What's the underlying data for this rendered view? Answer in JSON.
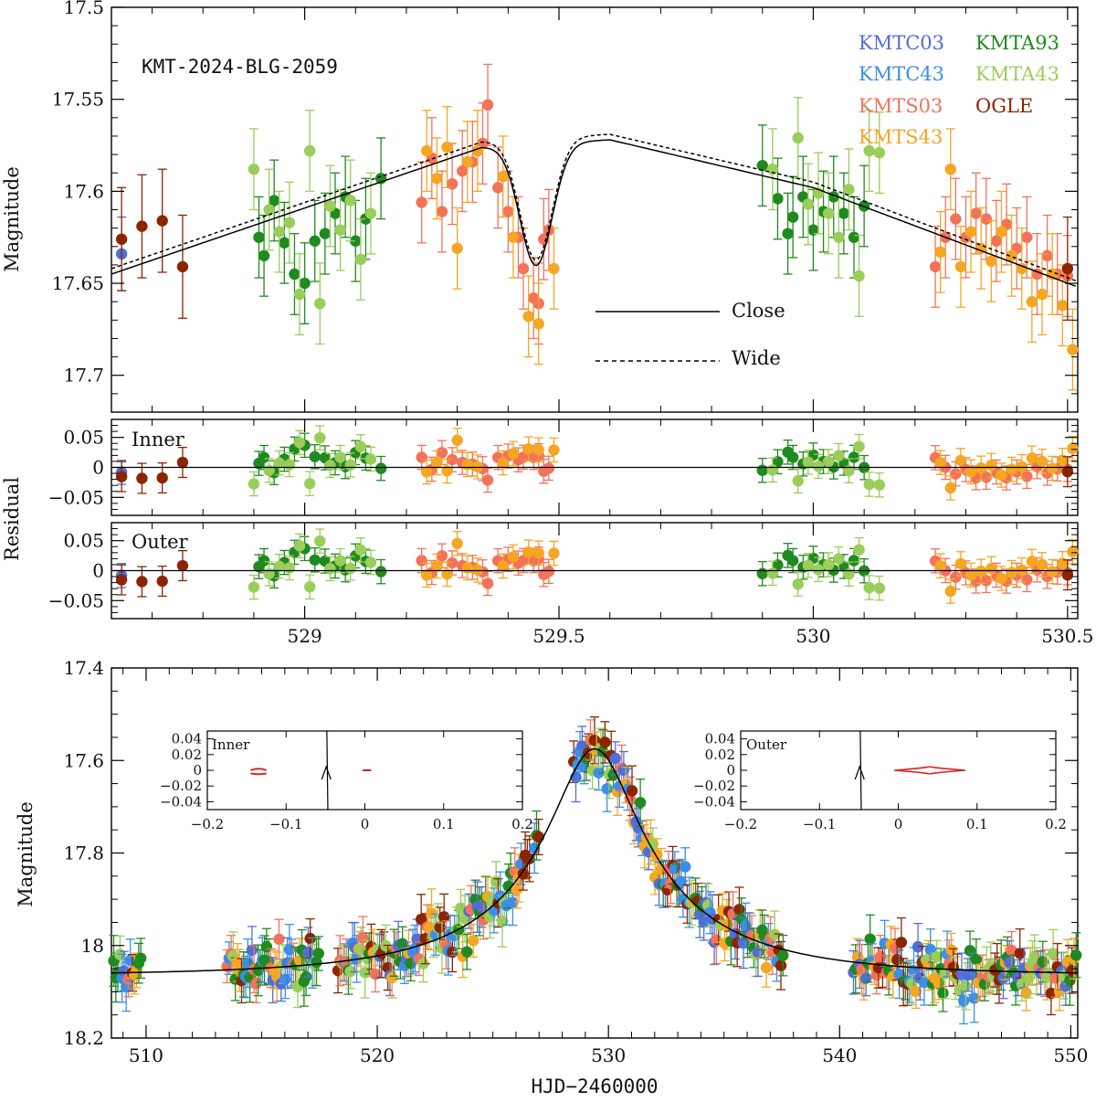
{
  "chart_data": [
    {
      "type": "scatter",
      "panel": "light-curve-zoom",
      "title": "KMT-2024-BLG-2059",
      "ylabel": "Magnitude",
      "xlim": [
        528.62,
        530.52
      ],
      "ylim": [
        17.72,
        17.5
      ],
      "yticks": [
        "17.5",
        "17.55",
        "17.6",
        "17.65",
        "17.7"
      ],
      "legend_placement": "top-right",
      "datasets": [
        {
          "name": "KMTC03",
          "color": "#4f6fd8",
          "points": [
            [
              528.64,
              17.634
            ]
          ]
        },
        {
          "name": "KMTA93",
          "color": "#1f8a1f",
          "points": [
            [
              528.91,
              17.625
            ],
            [
              528.92,
              17.635
            ],
            [
              528.94,
              17.605
            ],
            [
              528.96,
              17.628
            ],
            [
              528.98,
              17.645
            ],
            [
              529.0,
              17.65
            ],
            [
              529.02,
              17.627
            ],
            [
              529.04,
              17.623
            ],
            [
              529.06,
              17.612
            ],
            [
              529.08,
              17.603
            ],
            [
              529.1,
              17.627
            ],
            [
              529.12,
              17.615
            ],
            [
              529.15,
              17.593
            ],
            [
              529.96,
              17.614
            ],
            [
              529.98,
              17.603
            ],
            [
              530.0,
              17.621
            ],
            [
              530.02,
              17.611
            ],
            [
              530.04,
              17.603
            ],
            [
              530.06,
              17.612
            ],
            [
              530.08,
              17.625
            ],
            [
              530.1,
              17.608
            ],
            [
              529.9,
              17.586
            ],
            [
              529.93,
              17.604
            ],
            [
              529.95,
              17.623
            ]
          ]
        },
        {
          "name": "KMTA43",
          "color": "#9acd5a",
          "points": [
            [
              528.9,
              17.588
            ],
            [
              528.93,
              17.61
            ],
            [
              528.95,
              17.622
            ],
            [
              528.97,
              17.617
            ],
            [
              528.99,
              17.656
            ],
            [
              529.01,
              17.578
            ],
            [
              529.03,
              17.661
            ],
            [
              529.05,
              17.608
            ],
            [
              529.07,
              17.621
            ],
            [
              529.09,
              17.605
            ],
            [
              529.11,
              17.637
            ],
            [
              529.13,
              17.612
            ],
            [
              529.92,
              17.588
            ],
            [
              529.97,
              17.571
            ],
            [
              529.99,
              17.607
            ],
            [
              530.01,
              17.601
            ],
            [
              530.03,
              17.612
            ],
            [
              530.05,
              17.625
            ],
            [
              530.07,
              17.599
            ],
            [
              530.09,
              17.646
            ],
            [
              530.11,
              17.578
            ],
            [
              530.13,
              17.579
            ]
          ]
        },
        {
          "name": "KMTS03",
          "color": "#f2735a",
          "points": [
            [
              529.23,
              17.606
            ],
            [
              529.25,
              17.582
            ],
            [
              529.27,
              17.611
            ],
            [
              529.29,
              17.596
            ],
            [
              529.31,
              17.589
            ],
            [
              529.33,
              17.584
            ],
            [
              529.35,
              17.574
            ],
            [
              529.36,
              17.553
            ],
            [
              529.38,
              17.598
            ],
            [
              529.4,
              17.611
            ],
            [
              529.42,
              17.625
            ],
            [
              529.43,
              17.642
            ],
            [
              529.45,
              17.658
            ],
            [
              529.46,
              17.661
            ],
            [
              529.47,
              17.626
            ],
            [
              529.48,
              17.621
            ],
            [
              530.24,
              17.641
            ],
            [
              530.26,
              17.625
            ],
            [
              530.28,
              17.615
            ],
            [
              530.3,
              17.625
            ],
            [
              530.32,
              17.612
            ],
            [
              530.34,
              17.615
            ],
            [
              530.36,
              17.627
            ],
            [
              530.38,
              17.618
            ],
            [
              530.4,
              17.631
            ],
            [
              530.42,
              17.625
            ],
            [
              530.44,
              17.645
            ],
            [
              530.46,
              17.635
            ],
            [
              530.48,
              17.645
            ],
            [
              530.5,
              17.646
            ]
          ]
        },
        {
          "name": "KMTS43",
          "color": "#f5a623",
          "points": [
            [
              529.24,
              17.578
            ],
            [
              529.26,
              17.593
            ],
            [
              529.28,
              17.576
            ],
            [
              529.3,
              17.631
            ],
            [
              529.32,
              17.584
            ],
            [
              529.34,
              17.578
            ],
            [
              529.39,
              17.592
            ],
            [
              529.41,
              17.625
            ],
            [
              529.44,
              17.668
            ],
            [
              529.46,
              17.672
            ],
            [
              529.49,
              17.642
            ],
            [
              530.25,
              17.633
            ],
            [
              530.27,
              17.588
            ],
            [
              530.29,
              17.641
            ],
            [
              530.31,
              17.622
            ],
            [
              530.33,
              17.631
            ],
            [
              530.35,
              17.638
            ],
            [
              530.37,
              17.622
            ],
            [
              530.39,
              17.635
            ],
            [
              530.41,
              17.642
            ],
            [
              530.43,
              17.66
            ],
            [
              530.45,
              17.656
            ],
            [
              530.47,
              17.645
            ],
            [
              530.49,
              17.662
            ],
            [
              530.51,
              17.686
            ]
          ]
        },
        {
          "name": "OGLE",
          "color": "#8b2500",
          "points": [
            [
              528.64,
              17.626
            ],
            [
              528.68,
              17.619
            ],
            [
              528.72,
              17.616
            ],
            [
              528.76,
              17.641
            ],
            [
              530.5,
              17.642
            ]
          ]
        }
      ],
      "models": [
        {
          "name": "Close",
          "style": "solid"
        },
        {
          "name": "Wide",
          "style": "dashed"
        }
      ]
    },
    {
      "type": "scatter",
      "panel": "residual-inner",
      "ylabel": "Residual",
      "label": "Inner",
      "xlim": [
        528.62,
        530.52
      ],
      "ylim": [
        -0.08,
        0.08
      ],
      "yticks": [
        "0.05",
        "0",
        "−0.05"
      ]
    },
    {
      "type": "scatter",
      "panel": "residual-outer",
      "label": "Outer",
      "xlim": [
        528.62,
        530.52
      ],
      "ylim": [
        -0.08,
        0.08
      ],
      "yticks": [
        "0.05",
        "0",
        "−0.05"
      ],
      "xticks": [
        "529",
        "529.5",
        "530",
        "530.5"
      ]
    },
    {
      "type": "scatter",
      "panel": "light-curve-full",
      "ylabel": "Magnitude",
      "xlabel": "HJD−2460000",
      "xlim": [
        508.5,
        550.3
      ],
      "ylim": [
        18.2,
        17.4
      ],
      "yticks": [
        "17.4",
        "17.6",
        "17.8",
        "18",
        "18.2"
      ],
      "xticks": [
        "510",
        "520",
        "530",
        "540",
        "550"
      ],
      "baseline_mag": 18.065,
      "peak_mag": 17.575,
      "peak_time": 529.4
    },
    {
      "type": "line",
      "panel": "caustic-inset-inner",
      "label": "Inner",
      "xlim": [
        -0.2,
        0.2
      ],
      "ylim": [
        -0.05,
        0.05
      ],
      "xticks": [
        "−0.2",
        "−0.1",
        "0",
        "0.1",
        "0.2"
      ],
      "yticks": [
        "0.04",
        "0.02",
        "0",
        "−0.02",
        "−0.04"
      ]
    },
    {
      "type": "line",
      "panel": "caustic-inset-outer",
      "label": "Outer",
      "xlim": [
        -0.2,
        0.2
      ],
      "ylim": [
        -0.05,
        0.05
      ],
      "xticks": [
        "−0.2",
        "−0.1",
        "0",
        "0.1",
        "0.2"
      ],
      "yticks": [
        "0.04",
        "0.02",
        "0",
        "−0.02",
        "−0.04"
      ]
    }
  ],
  "labels": {
    "title": "KMT-2024-BLG-2059",
    "ylabel_top": "Magnitude",
    "ylabel_resid": "Residual",
    "ylabel_bottom": "Magnitude",
    "xlabel": "HJD−2460000",
    "close": "Close",
    "wide": "Wide",
    "inner": "Inner",
    "outer": "Outer",
    "inset_inner": "Inner",
    "inset_outer": "Outer",
    "legend": [
      "KMTC03",
      "KMTA93",
      "KMTC43",
      "KMTA43",
      "KMTS03",
      "OGLE",
      "KMTS43"
    ]
  },
  "colors": {
    "KMTC03": "#4f6fd8",
    "KMTC43": "#3b8fe8",
    "KMTS03": "#f2735a",
    "KMTS43": "#f5a623",
    "KMTA93": "#1f8a1f",
    "KMTA43": "#9acd5a",
    "OGLE": "#8b2500",
    "caustic": "#e02020"
  }
}
